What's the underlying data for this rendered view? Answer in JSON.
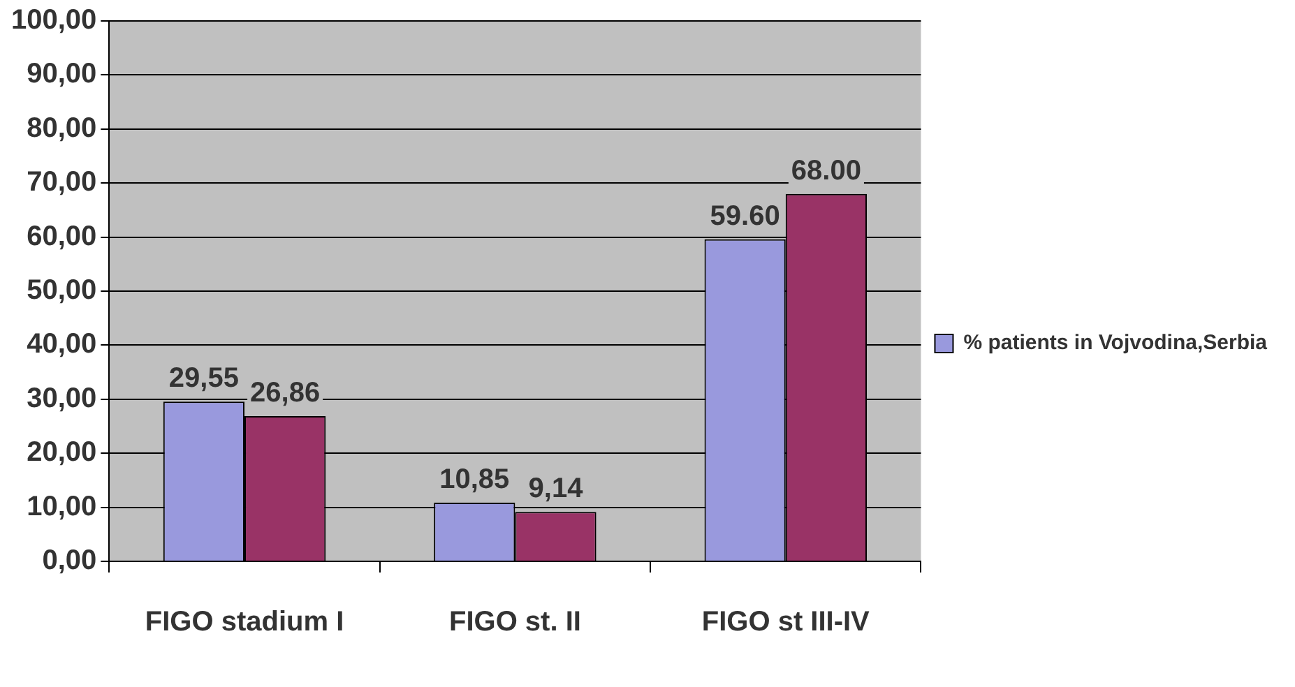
{
  "chart_data": {
    "type": "bar",
    "categories": [
      "FIGO stadium I",
      "FIGO st. II",
      "FIGO st III-IV"
    ],
    "series": [
      {
        "name": "% patients in Vojvodina,Serbia",
        "color": "#9999dd",
        "values": [
          29.55,
          10.85,
          59.6
        ],
        "value_labels": [
          "29,55",
          "10,85",
          "59.60"
        ]
      },
      {
        "color": "#993366",
        "values": [
          26.86,
          9.14,
          68.0
        ],
        "value_labels": [
          "26,86",
          "9,14",
          "68.00"
        ]
      }
    ],
    "ylim": [
      0,
      100
    ],
    "yticks": [
      {
        "value": 0,
        "label": "0,00"
      },
      {
        "value": 10,
        "label": "10,00"
      },
      {
        "value": 20,
        "label": "20,00"
      },
      {
        "value": 30,
        "label": "30,00"
      },
      {
        "value": 40,
        "label": "40,00"
      },
      {
        "value": 50,
        "label": "50,00"
      },
      {
        "value": 60,
        "label": "60,00"
      },
      {
        "value": 70,
        "label": "70,00"
      },
      {
        "value": 80,
        "label": "80,00"
      },
      {
        "value": 90,
        "label": "90,00"
      },
      {
        "value": 100,
        "label": "100,00"
      }
    ],
    "grid": "y",
    "legend": "right"
  }
}
